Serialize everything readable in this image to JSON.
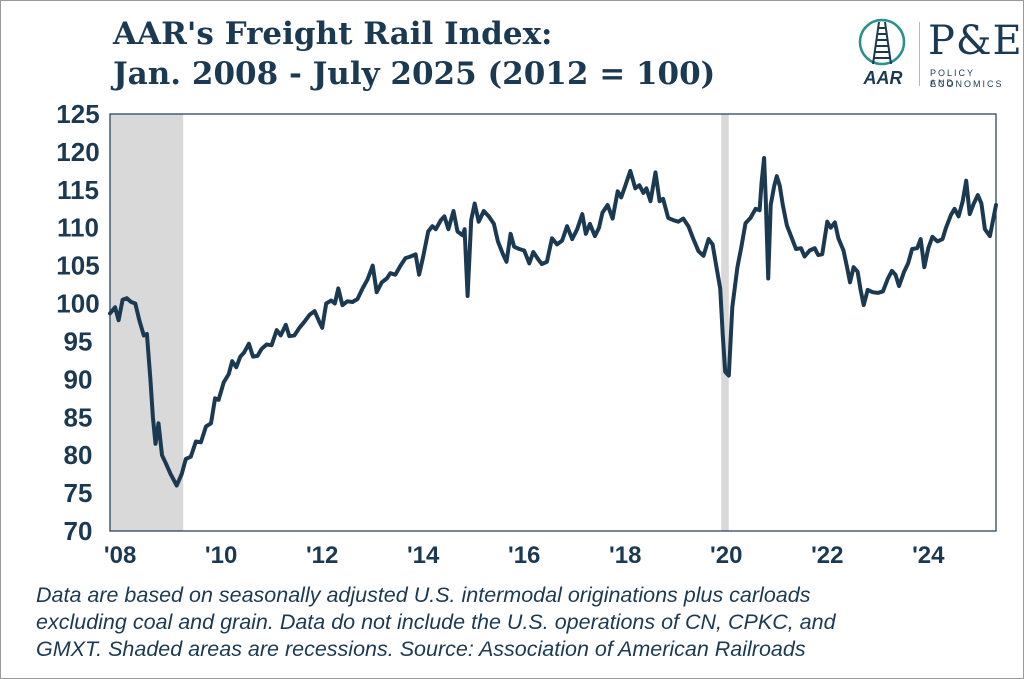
{
  "header": {
    "title_line1": "AAR's Freight Rail Index:",
    "title_line2": "Jan. 2008 - July 2025 (2012 = 100)"
  },
  "logo": {
    "aar_text": "AAR",
    "pe_text": "P&E",
    "pe_sub1": "POLICY AND",
    "pe_sub2": "ECONOMICS"
  },
  "colors": {
    "line": "#1b3a52",
    "recession": "#d9d9d9",
    "axis_text": "#1b3a52"
  },
  "chart_data": {
    "type": "line",
    "title": "AAR's Freight Rail Index: Jan. 2008 - July 2025 (2012 = 100)",
    "xlabel": "",
    "ylabel": "",
    "xlim": [
      2008.0,
      2025.54
    ],
    "ylim": [
      70,
      125
    ],
    "y_ticks": [
      70,
      75,
      80,
      85,
      90,
      95,
      100,
      105,
      110,
      115,
      120,
      125
    ],
    "x_ticks": [
      {
        "value": 2008.2,
        "label": "'08"
      },
      {
        "value": 2010.2,
        "label": "'10"
      },
      {
        "value": 2012.2,
        "label": "'12"
      },
      {
        "value": 2014.2,
        "label": "'14"
      },
      {
        "value": 2016.2,
        "label": "'16"
      },
      {
        "value": 2018.2,
        "label": "'18"
      },
      {
        "value": 2020.2,
        "label": "'20"
      },
      {
        "value": 2022.2,
        "label": "'22"
      },
      {
        "value": 2024.2,
        "label": "'24"
      }
    ],
    "recessions": [
      [
        2008.0,
        2009.45
      ],
      [
        2020.1,
        2020.25
      ]
    ],
    "grid": false,
    "legend": "none",
    "series": [
      {
        "points": [
          [
            2008.0,
            98.7
          ],
          [
            2008.1,
            99.5
          ],
          [
            2008.17,
            97.8
          ],
          [
            2008.25,
            100.5
          ],
          [
            2008.33,
            100.7
          ],
          [
            2008.42,
            100.2
          ],
          [
            2008.5,
            100.0
          ],
          [
            2008.58,
            97.8
          ],
          [
            2008.67,
            95.8
          ],
          [
            2008.73,
            96.0
          ],
          [
            2008.8,
            90.0
          ],
          [
            2008.85,
            85.0
          ],
          [
            2008.9,
            81.5
          ],
          [
            2008.96,
            84.2
          ],
          [
            2009.03,
            80.0
          ],
          [
            2009.1,
            79.0
          ],
          [
            2009.2,
            77.5
          ],
          [
            2009.32,
            76.0
          ],
          [
            2009.42,
            77.5
          ],
          [
            2009.5,
            79.5
          ],
          [
            2009.6,
            79.8
          ],
          [
            2009.7,
            81.8
          ],
          [
            2009.8,
            81.7
          ],
          [
            2009.9,
            83.8
          ],
          [
            2010.0,
            84.2
          ],
          [
            2010.08,
            87.5
          ],
          [
            2010.15,
            87.3
          ],
          [
            2010.25,
            89.6
          ],
          [
            2010.35,
            90.7
          ],
          [
            2010.42,
            92.4
          ],
          [
            2010.5,
            91.6
          ],
          [
            2010.58,
            93.0
          ],
          [
            2010.65,
            93.5
          ],
          [
            2010.75,
            94.7
          ],
          [
            2010.83,
            93.0
          ],
          [
            2010.92,
            93.1
          ],
          [
            2011.0,
            94.0
          ],
          [
            2011.1,
            94.6
          ],
          [
            2011.2,
            94.5
          ],
          [
            2011.3,
            96.5
          ],
          [
            2011.38,
            95.8
          ],
          [
            2011.48,
            97.2
          ],
          [
            2011.55,
            95.7
          ],
          [
            2011.65,
            95.8
          ],
          [
            2011.75,
            96.8
          ],
          [
            2011.85,
            97.6
          ],
          [
            2011.95,
            98.5
          ],
          [
            2012.05,
            99.0
          ],
          [
            2012.15,
            97.5
          ],
          [
            2012.2,
            96.8
          ],
          [
            2012.28,
            100.0
          ],
          [
            2012.38,
            100.4
          ],
          [
            2012.45,
            100.0
          ],
          [
            2012.52,
            102.0
          ],
          [
            2012.6,
            99.8
          ],
          [
            2012.7,
            100.3
          ],
          [
            2012.8,
            100.2
          ],
          [
            2012.9,
            100.6
          ],
          [
            2013.0,
            102.0
          ],
          [
            2013.1,
            103.2
          ],
          [
            2013.2,
            105.0
          ],
          [
            2013.28,
            101.5
          ],
          [
            2013.38,
            102.8
          ],
          [
            2013.48,
            103.3
          ],
          [
            2013.55,
            104.0
          ],
          [
            2013.65,
            103.8
          ],
          [
            2013.75,
            105.0
          ],
          [
            2013.85,
            106.0
          ],
          [
            2013.95,
            106.2
          ],
          [
            2014.05,
            106.5
          ],
          [
            2014.12,
            103.8
          ],
          [
            2014.2,
            106.2
          ],
          [
            2014.3,
            109.5
          ],
          [
            2014.38,
            110.2
          ],
          [
            2014.45,
            109.8
          ],
          [
            2014.55,
            111.0
          ],
          [
            2014.62,
            111.5
          ],
          [
            2014.7,
            109.8
          ],
          [
            2014.8,
            112.2
          ],
          [
            2014.88,
            109.5
          ],
          [
            2014.98,
            109.0
          ],
          [
            2015.02,
            109.8
          ],
          [
            2015.08,
            101.0
          ],
          [
            2015.15,
            111.0
          ],
          [
            2015.22,
            113.2
          ],
          [
            2015.3,
            110.8
          ],
          [
            2015.4,
            112.2
          ],
          [
            2015.5,
            111.5
          ],
          [
            2015.6,
            110.5
          ],
          [
            2015.68,
            108.2
          ],
          [
            2015.78,
            106.5
          ],
          [
            2015.85,
            105.5
          ],
          [
            2015.93,
            109.2
          ],
          [
            2016.0,
            107.5
          ],
          [
            2016.1,
            107.2
          ],
          [
            2016.2,
            107.0
          ],
          [
            2016.3,
            105.3
          ],
          [
            2016.38,
            106.8
          ],
          [
            2016.48,
            105.8
          ],
          [
            2016.55,
            105.2
          ],
          [
            2016.65,
            105.5
          ],
          [
            2016.75,
            108.6
          ],
          [
            2016.85,
            107.8
          ],
          [
            2016.95,
            108.3
          ],
          [
            2017.05,
            110.2
          ],
          [
            2017.15,
            108.5
          ],
          [
            2017.25,
            109.8
          ],
          [
            2017.35,
            111.8
          ],
          [
            2017.42,
            109.2
          ],
          [
            2017.5,
            110.5
          ],
          [
            2017.6,
            108.9
          ],
          [
            2017.68,
            110.0
          ],
          [
            2017.75,
            112.0
          ],
          [
            2017.85,
            113.0
          ],
          [
            2017.95,
            111.2
          ],
          [
            2018.05,
            114.8
          ],
          [
            2018.12,
            114.0
          ],
          [
            2018.2,
            115.5
          ],
          [
            2018.3,
            117.5
          ],
          [
            2018.4,
            115.2
          ],
          [
            2018.48,
            115.6
          ],
          [
            2018.56,
            114.6
          ],
          [
            2018.62,
            115.2
          ],
          [
            2018.7,
            113.5
          ],
          [
            2018.8,
            117.3
          ],
          [
            2018.88,
            113.5
          ],
          [
            2018.95,
            113.8
          ],
          [
            2019.05,
            111.3
          ],
          [
            2019.15,
            111.0
          ],
          [
            2019.25,
            110.8
          ],
          [
            2019.35,
            111.2
          ],
          [
            2019.45,
            110.2
          ],
          [
            2019.55,
            108.5
          ],
          [
            2019.65,
            106.9
          ],
          [
            2019.75,
            106.3
          ],
          [
            2019.85,
            108.5
          ],
          [
            2019.93,
            107.8
          ],
          [
            2020.0,
            105.0
          ],
          [
            2020.08,
            102.0
          ],
          [
            2020.13,
            96.0
          ],
          [
            2020.18,
            91.0
          ],
          [
            2020.25,
            90.5
          ],
          [
            2020.32,
            99.5
          ],
          [
            2020.42,
            104.8
          ],
          [
            2020.5,
            107.5
          ],
          [
            2020.58,
            110.6
          ],
          [
            2020.68,
            111.3
          ],
          [
            2020.78,
            112.5
          ],
          [
            2020.86,
            112.3
          ],
          [
            2020.9,
            116.0
          ],
          [
            2020.95,
            119.2
          ],
          [
            2020.98,
            114.0
          ],
          [
            2021.03,
            103.3
          ],
          [
            2021.08,
            113.0
          ],
          [
            2021.15,
            115.5
          ],
          [
            2021.2,
            116.8
          ],
          [
            2021.26,
            115.5
          ],
          [
            2021.32,
            113.0
          ],
          [
            2021.4,
            110.3
          ],
          [
            2021.5,
            108.6
          ],
          [
            2021.58,
            107.2
          ],
          [
            2021.68,
            107.3
          ],
          [
            2021.75,
            106.2
          ],
          [
            2021.85,
            107.0
          ],
          [
            2021.95,
            107.3
          ],
          [
            2022.02,
            106.4
          ],
          [
            2022.1,
            106.5
          ],
          [
            2022.2,
            110.8
          ],
          [
            2022.27,
            110.0
          ],
          [
            2022.35,
            110.7
          ],
          [
            2022.42,
            108.6
          ],
          [
            2022.52,
            107.0
          ],
          [
            2022.6,
            104.5
          ],
          [
            2022.65,
            102.8
          ],
          [
            2022.72,
            104.8
          ],
          [
            2022.8,
            104.2
          ],
          [
            2022.86,
            101.8
          ],
          [
            2022.92,
            99.8
          ],
          [
            2023.0,
            101.8
          ],
          [
            2023.1,
            101.5
          ],
          [
            2023.2,
            101.4
          ],
          [
            2023.3,
            101.6
          ],
          [
            2023.4,
            103.3
          ],
          [
            2023.48,
            104.3
          ],
          [
            2023.55,
            103.8
          ],
          [
            2023.62,
            102.3
          ],
          [
            2023.72,
            104.2
          ],
          [
            2023.8,
            105.3
          ],
          [
            2023.88,
            107.2
          ],
          [
            2023.98,
            107.3
          ],
          [
            2024.05,
            108.5
          ],
          [
            2024.12,
            104.8
          ],
          [
            2024.2,
            107.3
          ],
          [
            2024.28,
            108.8
          ],
          [
            2024.38,
            108.2
          ],
          [
            2024.48,
            108.5
          ],
          [
            2024.55,
            110.0
          ],
          [
            2024.65,
            111.7
          ],
          [
            2024.72,
            112.5
          ],
          [
            2024.8,
            111.5
          ],
          [
            2024.88,
            113.5
          ],
          [
            2024.95,
            116.2
          ],
          [
            2025.02,
            111.8
          ],
          [
            2025.1,
            113.2
          ],
          [
            2025.18,
            114.3
          ],
          [
            2025.25,
            113.2
          ],
          [
            2025.32,
            109.8
          ],
          [
            2025.42,
            108.9
          ],
          [
            2025.54,
            113.0
          ]
        ]
      }
    ]
  },
  "footnote": {
    "line1": "Data are based on seasonally adjusted U.S. intermodal originations plus carloads",
    "line2": "excluding coal and grain. Data do not include the U.S. operations of CN, CPKC, and",
    "line3": "GMXT. Shaded areas are recessions. Source: Association of American Railroads"
  }
}
